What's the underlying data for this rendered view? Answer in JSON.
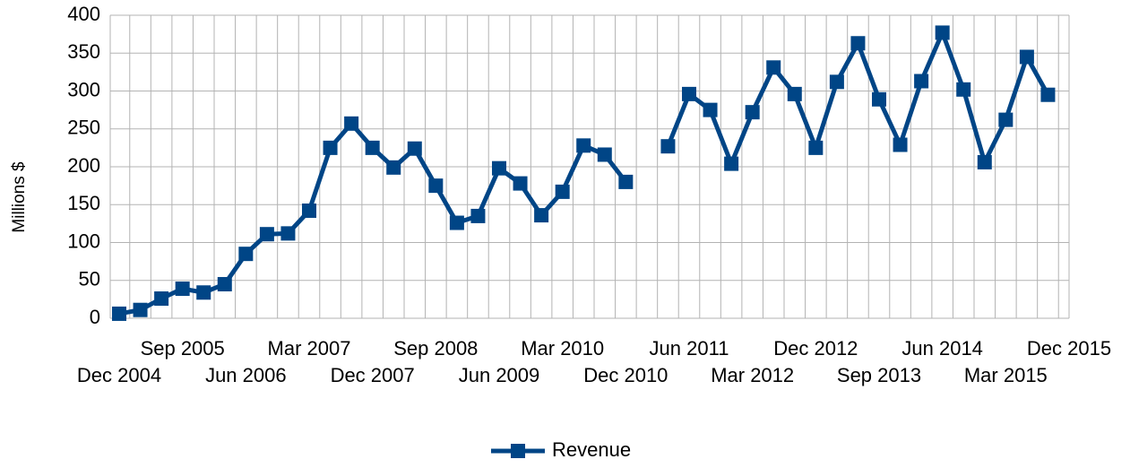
{
  "chart_data": {
    "type": "line",
    "y_axis_label": "Millions $",
    "categories": [
      "Dec 2004",
      null,
      null,
      "Sep 2005",
      null,
      null,
      "Jun 2006",
      null,
      null,
      "Mar 2007",
      null,
      null,
      "Dec 2007",
      null,
      null,
      "Sep 2008",
      null,
      null,
      "Jun 2009",
      null,
      null,
      "Mar 2010",
      null,
      null,
      "Dec 2010",
      null,
      null,
      "Jun 2011",
      null,
      null,
      "Mar 2012",
      null,
      null,
      "Dec 2012",
      null,
      null,
      "Sep 2013",
      null,
      null,
      "Jun 2014",
      null,
      null,
      "Mar 2015",
      null,
      null,
      "Dec 2015"
    ],
    "series": [
      {
        "name": "Revenue",
        "color": "#004586",
        "values": [
          6,
          11,
          26,
          39,
          34,
          45,
          85,
          111,
          112,
          142,
          225,
          257,
          225,
          199,
          224,
          175,
          126,
          135,
          198,
          178,
          136,
          167,
          228,
          216,
          180,
          null,
          227,
          296,
          275,
          204,
          272,
          331,
          296,
          225,
          312,
          363,
          289,
          229,
          313,
          377,
          302,
          206,
          262,
          345,
          295,
          null
        ]
      }
    ],
    "ylim": [
      0,
      400
    ],
    "yticks": [
      0,
      50,
      100,
      150,
      200,
      250,
      300,
      350,
      400
    ],
    "grid": true,
    "legend": "bottom"
  }
}
